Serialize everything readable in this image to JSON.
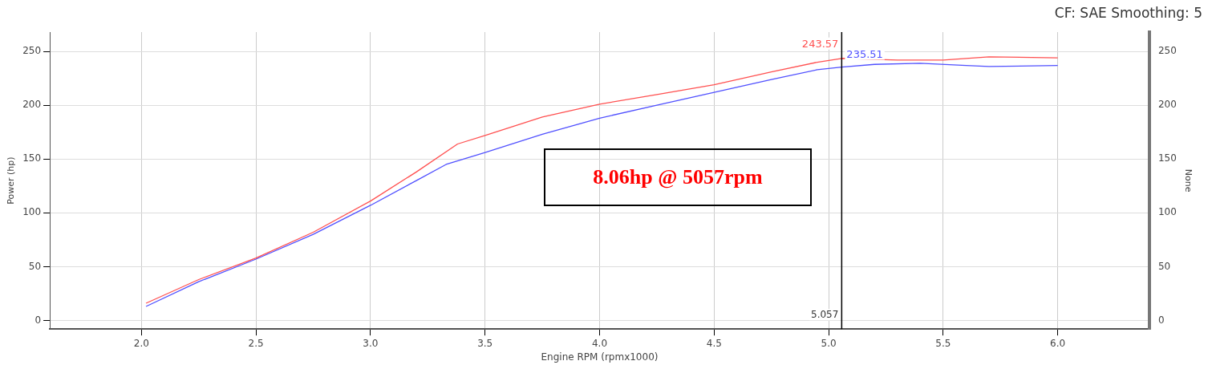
{
  "chart_data": {
    "type": "line",
    "subtitle": "CF: SAE Smoothing: 5",
    "xlabel": "Engine RPM (rpmx1000)",
    "ylabel": "Power (hp)",
    "y2label": "None",
    "xlim": [
      1.6,
      6.4
    ],
    "xticks": [
      {
        "value": 2,
        "label": "2.0"
      },
      {
        "value": 2.5,
        "label": "2.5"
      },
      {
        "value": 3,
        "label": "3.0"
      },
      {
        "value": 3.5,
        "label": "3.5"
      },
      {
        "value": 4,
        "label": "4.0"
      },
      {
        "value": 4.5,
        "label": "4.5"
      },
      {
        "value": 5,
        "label": "5.0"
      },
      {
        "value": 5.5,
        "label": "5.5"
      },
      {
        "value": 6,
        "label": "6.0"
      }
    ],
    "ylim": [
      -8,
      268
    ],
    "yticks": [
      0,
      50,
      100,
      150,
      200,
      250
    ],
    "y2lim": [
      -8,
      268
    ],
    "y2ticks": [
      0,
      50,
      100,
      150,
      200,
      250
    ],
    "grid": true,
    "legend": false,
    "marker": "none",
    "line_style": "solid",
    "series": [
      {
        "color": "#ff5050",
        "x": [
          2.02,
          2.25,
          2.5,
          2.75,
          3.0,
          3.2,
          3.38,
          3.5,
          3.75,
          4.0,
          4.25,
          4.5,
          4.75,
          4.95,
          5.057,
          5.3,
          5.5,
          5.7,
          6.0
        ],
        "values": [
          16,
          38,
          58,
          82,
          111,
          138,
          164,
          172,
          189,
          201,
          210,
          219,
          231,
          240,
          243.57,
          242,
          242,
          245,
          244
        ]
      },
      {
        "color": "#5050ff",
        "x": [
          2.02,
          2.25,
          2.5,
          2.75,
          3.0,
          3.2,
          3.33,
          3.5,
          3.75,
          4.0,
          4.25,
          4.5,
          4.75,
          4.95,
          5.057,
          5.2,
          5.4,
          5.6,
          5.7,
          6.0
        ],
        "values": [
          13,
          36,
          57,
          80,
          107,
          130,
          145,
          156,
          173,
          188,
          200,
          212,
          224,
          233,
          235.51,
          238,
          239,
          237,
          236,
          237
        ]
      }
    ],
    "ref_lines": [
      {
        "axis": "x",
        "value": 5.057,
        "label": "5.057",
        "color": "#000000"
      }
    ],
    "annotations": [
      {
        "text": "243.57",
        "x": 5.057,
        "y": 243.57
      },
      {
        "text": "235.51",
        "x": 5.057,
        "y": 235.51
      },
      "8.06hp @ 5057rpm"
    ]
  }
}
